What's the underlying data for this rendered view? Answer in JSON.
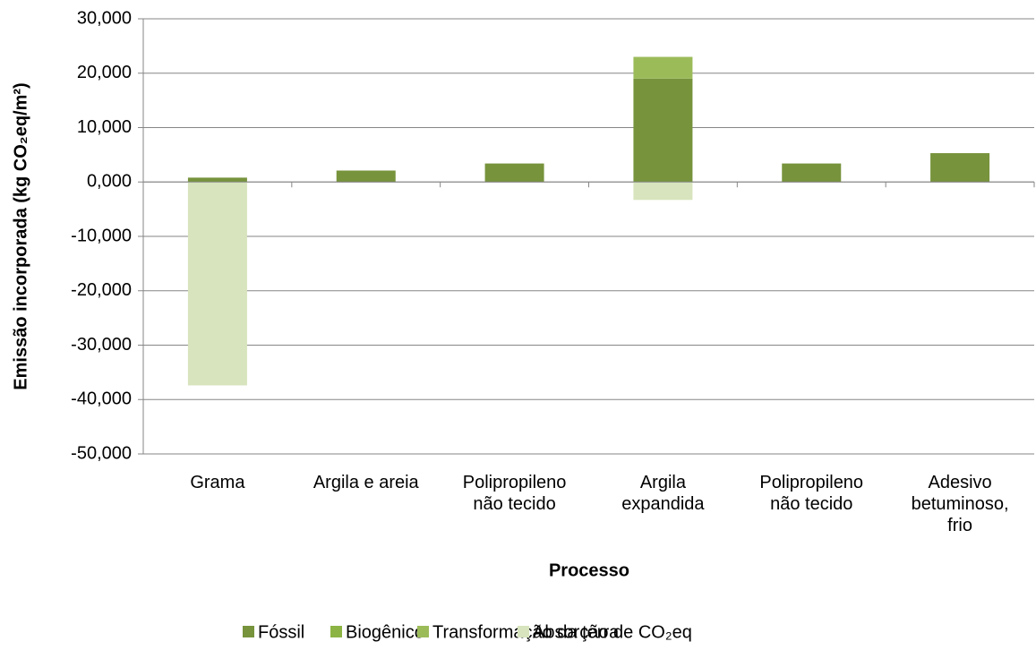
{
  "chart_data": {
    "type": "stacked_bar",
    "y_label": "Emissão incorporada (kg CO₂eq/m²)",
    "x_label": "Processo",
    "categories": [
      "Grama",
      "Argila e areia",
      "Polipropileno\nnão tecido",
      "Argila\nexpandida",
      "Polipropileno\nnão tecido",
      "Adesivo\nbetuminoso,\nfrio"
    ],
    "series": [
      {
        "name": "Fóssil",
        "color": "#77933c",
        "values": [
          0.8,
          2.1,
          3.4,
          19.0,
          3.4,
          5.3
        ]
      },
      {
        "name": "Biogênico",
        "color": "#8cb444",
        "values": [
          0,
          0,
          0,
          0,
          0,
          0
        ]
      },
      {
        "name": "Transformação da terra",
        "color": "#9bbb59",
        "values": [
          0,
          0,
          0,
          4.0,
          0,
          0
        ]
      },
      {
        "name": "Absorção de CO₂eq",
        "color": "#d7e4bd",
        "values": [
          -37.4,
          0,
          0,
          -3.3,
          0,
          0
        ]
      }
    ],
    "ylim": [
      -50,
      30
    ],
    "yticks": [
      {
        "value": -50,
        "label": "-50,000"
      },
      {
        "value": -40,
        "label": "-40,000"
      },
      {
        "value": -30,
        "label": "-30,000"
      },
      {
        "value": -20,
        "label": "-20,000"
      },
      {
        "value": -10,
        "label": "-10,000"
      },
      {
        "value": 0,
        "label": "0,000"
      },
      {
        "value": 10,
        "label": "10,000"
      },
      {
        "value": 20,
        "label": "20,000"
      },
      {
        "value": 30,
        "label": "30,000"
      }
    ],
    "grid": true,
    "legend": "bottom"
  }
}
